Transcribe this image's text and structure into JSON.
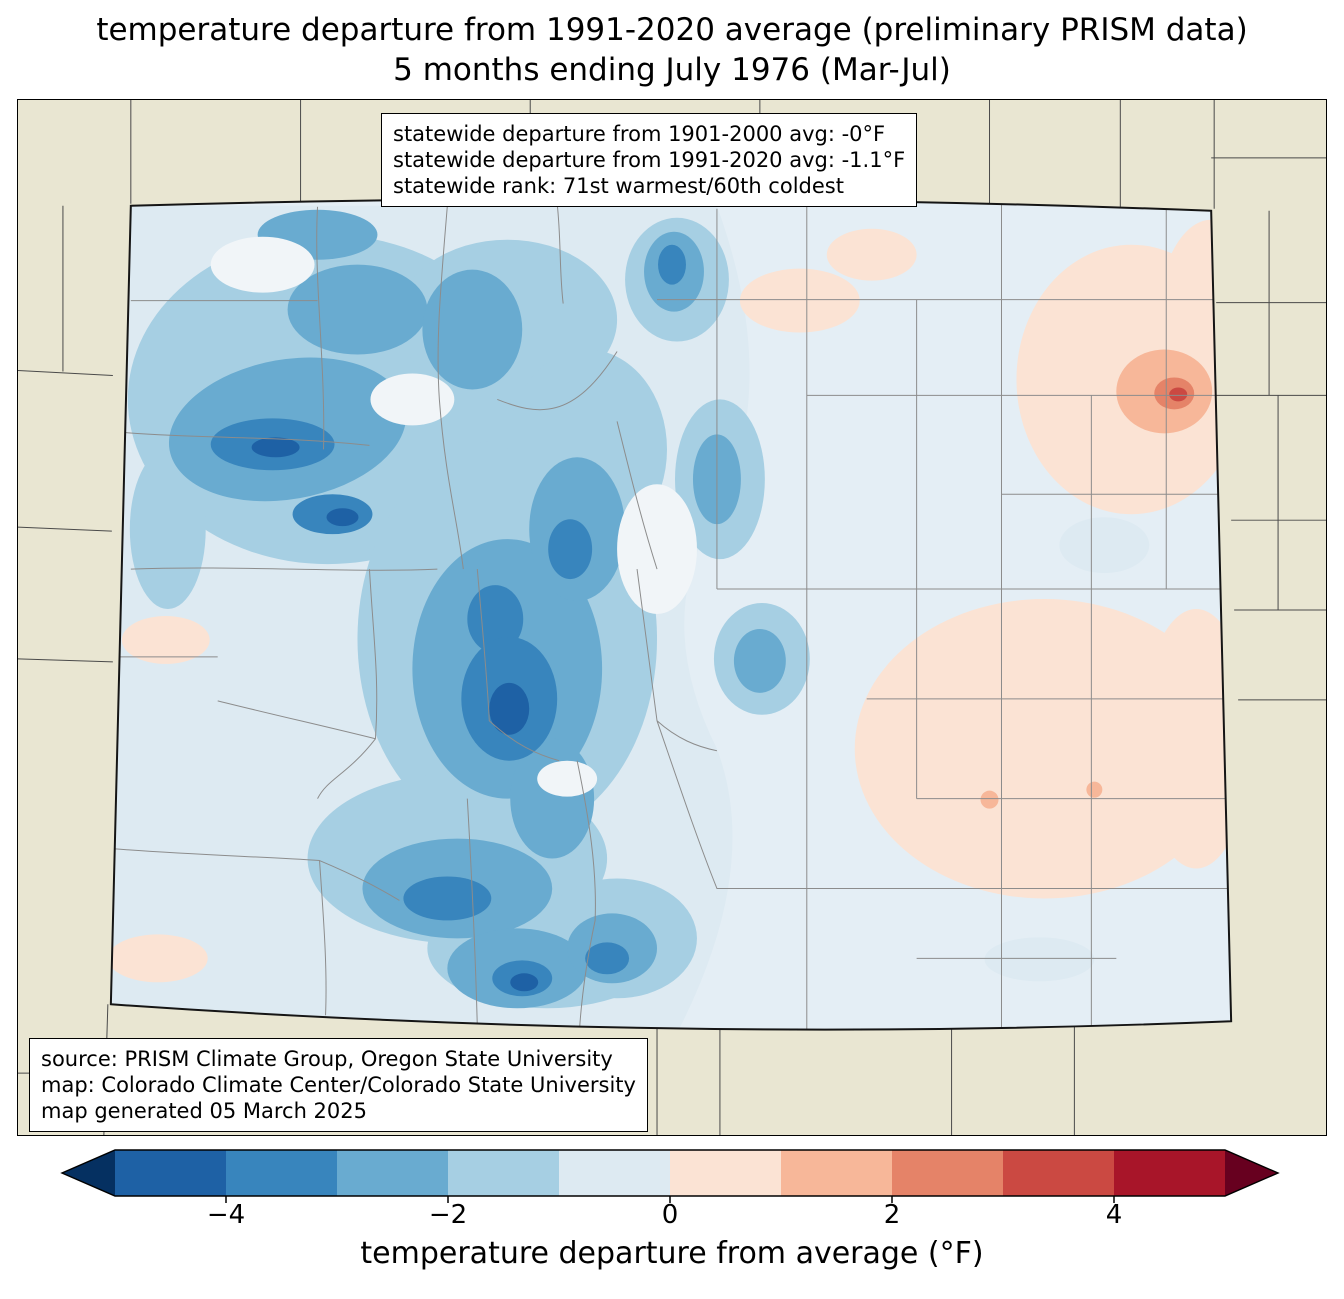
{
  "title": {
    "line1": "temperature departure from 1991-2020 average (preliminary PRISM data)",
    "line2": "5 months ending July 1976 (Mar-Jul)"
  },
  "stats_box": {
    "lines": [
      "statewide departure from 1901-2000 avg: -0°F",
      "statewide departure from 1991-2020 avg: -1.1°F",
      "statewide rank: 71st warmest/60th coldest"
    ]
  },
  "source_box": {
    "lines": [
      "source: PRISM Climate Group, Oregon State University",
      "map: Colorado Climate Center/Colorado State University",
      "map generated 05 March 2025"
    ]
  },
  "colorbar": {
    "label": "temperature departure from average (°F)",
    "ticks": [
      "−4",
      "−2",
      "0",
      "2",
      "4"
    ],
    "tick_values": [
      -4,
      -2,
      0,
      2,
      4
    ],
    "range": [
      -5,
      5
    ],
    "segment_colors": [
      "#1e61a5",
      "#3885bd",
      "#69abd0",
      "#a6cfe3",
      "#ddeaf2",
      "#fbe3d4",
      "#f7b799",
      "#e58368",
      "#cb4942",
      "#a81529"
    ],
    "arrow_left_color": "#053061",
    "arrow_right_color": "#67001f"
  },
  "map": {
    "land_color": "#e9e6d2",
    "state_base_color": "#e4eef5",
    "near_zero_color": "#f1f5f8",
    "county_line_color": "#8c8c8c",
    "boundary_color": "#4a4a4a"
  }
}
